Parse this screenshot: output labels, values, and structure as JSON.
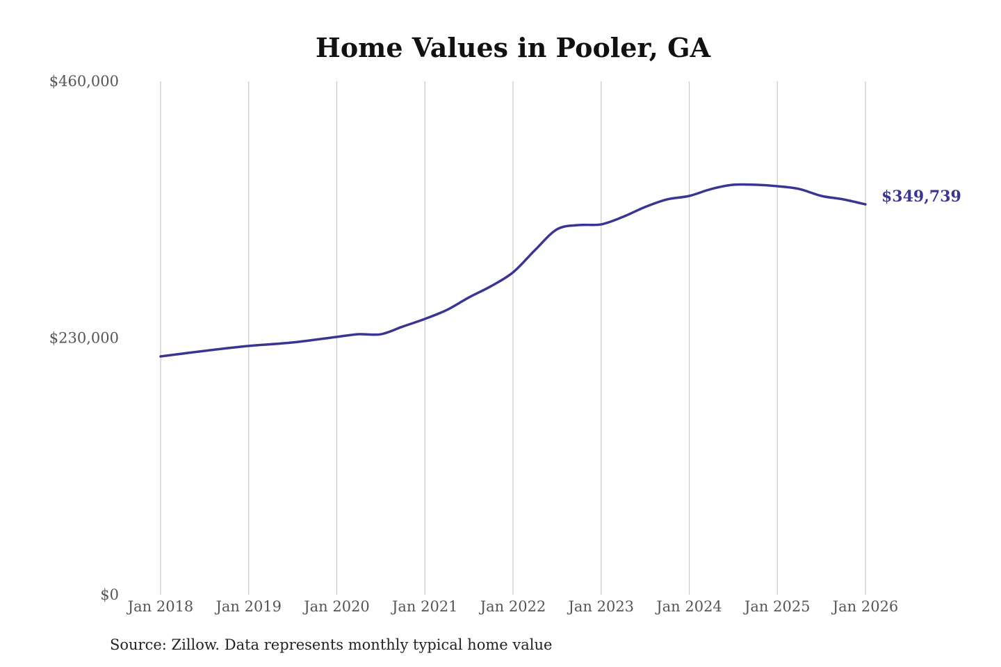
{
  "chart_data": {
    "type": "line",
    "title": "Home Values in Pooler, GA",
    "xlabel": "",
    "ylabel": "",
    "ylim": [
      0,
      460000
    ],
    "yticks": [
      0,
      230000,
      460000
    ],
    "ytick_labels": [
      "$0",
      "$230,000",
      "$460,000"
    ],
    "xlim": [
      2018,
      2026
    ],
    "xtick_labels": [
      "Jan 2018",
      "Jan 2019",
      "Jan 2020",
      "Jan 2021",
      "Jan 2022",
      "Jan 2023",
      "Jan 2024",
      "Jan 2025",
      "Jan 2026"
    ],
    "grid": "vertical",
    "legend": "none",
    "line_color": "#3a3594",
    "series": [
      {
        "x": [
          "2018-01",
          "2018-07",
          "2019-01",
          "2019-07",
          "2020-01",
          "2020-04",
          "2020-07",
          "2020-10",
          "2021-01",
          "2021-04",
          "2021-07",
          "2021-10",
          "2022-01",
          "2022-04",
          "2022-07",
          "2022-10",
          "2023-01",
          "2023-04",
          "2023-07",
          "2023-10",
          "2024-01",
          "2024-04",
          "2024-07",
          "2024-10",
          "2025-01",
          "2025-04",
          "2025-07",
          "2025-10",
          "2026-01"
        ],
        "values": [
          213500,
          218500,
          222900,
          226000,
          231000,
          233400,
          233400,
          240300,
          247100,
          255200,
          266400,
          276400,
          288800,
          308800,
          327400,
          331200,
          331800,
          338600,
          347400,
          354200,
          357300,
          363500,
          367300,
          367300,
          366000,
          363500,
          357300,
          354200,
          349739
        ]
      }
    ],
    "end_label": "$349,739"
  },
  "source": "Source: Zillow. Data represents monthly typical home value"
}
